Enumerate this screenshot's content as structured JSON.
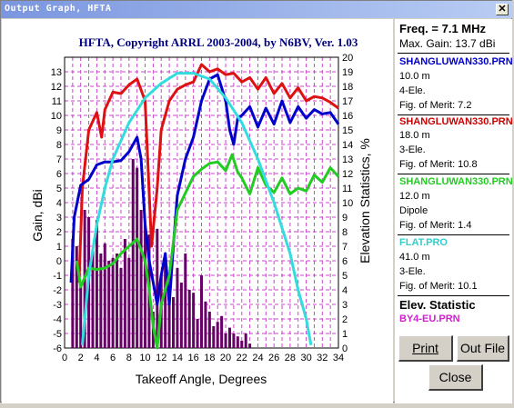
{
  "window": {
    "title": "Output Graph, HFTA"
  },
  "chart_data": {
    "type": "line",
    "title": "HFTA, Copyright ARRL 2003-2004, by N6BV, Ver. 1.03",
    "xlabel": "Takeoff Angle, Degrees",
    "ylabel": "Gain, dBi",
    "y2label": "Elevation Statistics, %",
    "xlim": [
      0,
      34
    ],
    "ylim": [
      -6,
      14
    ],
    "y2lim": [
      0,
      20
    ],
    "x_ticks": [
      "0",
      "2",
      "4",
      "6",
      "8",
      "10",
      "12",
      "14",
      "16",
      "18",
      "20",
      "22",
      "24",
      "26",
      "28",
      "30",
      "32",
      "34"
    ],
    "y_ticks": [
      "-6",
      "-5",
      "-4",
      "-3",
      "-2",
      "-1",
      "0",
      "1",
      "2",
      "3",
      "4",
      "5",
      "6",
      "7",
      "8",
      "9",
      "10",
      "11",
      "12",
      "13"
    ],
    "y2_ticks": [
      "0",
      "1",
      "2",
      "3",
      "4",
      "5",
      "6",
      "7",
      "8",
      "9",
      "10",
      "11",
      "12",
      "13",
      "14",
      "15",
      "16",
      "17",
      "18",
      "19",
      "20"
    ],
    "grid": true,
    "series": [
      {
        "name": "SHANGLUWAN330.PRN",
        "color": "#dd1111",
        "points": [
          [
            1.8,
            -1.5
          ],
          [
            2.2,
            5
          ],
          [
            3,
            9
          ],
          [
            4,
            10.2
          ],
          [
            4.6,
            8.5
          ],
          [
            5,
            10.4
          ],
          [
            6,
            11.6
          ],
          [
            7,
            11.5
          ],
          [
            8,
            12.1
          ],
          [
            9,
            12.5
          ],
          [
            10,
            11
          ],
          [
            10.8,
            1
          ],
          [
            11.5,
            5
          ],
          [
            12,
            9
          ],
          [
            13,
            11
          ],
          [
            14,
            11.8
          ],
          [
            15,
            12.1
          ],
          [
            16,
            12.3
          ],
          [
            17,
            13.5
          ],
          [
            18,
            13
          ],
          [
            19,
            13.2
          ],
          [
            20,
            12.8
          ],
          [
            21,
            12.9
          ],
          [
            22,
            12.3
          ],
          [
            23,
            12.6
          ],
          [
            24,
            11.8
          ],
          [
            25,
            12.6
          ],
          [
            26,
            11.5
          ],
          [
            27,
            12.2
          ],
          [
            28,
            11.2
          ],
          [
            29,
            11.9
          ],
          [
            30,
            11
          ],
          [
            31,
            11.3
          ],
          [
            32,
            11.2
          ],
          [
            33,
            10.9
          ],
          [
            34,
            10.5
          ]
        ]
      },
      {
        "name": "SHANGLUWAN330.PRN",
        "color": "#0000cc",
        "points": [
          [
            0.8,
            -1.5
          ],
          [
            1.2,
            3
          ],
          [
            2,
            5.2
          ],
          [
            3,
            5.6
          ],
          [
            4,
            6.6
          ],
          [
            5,
            6.8
          ],
          [
            6,
            6.8
          ],
          [
            7,
            6.9
          ],
          [
            8,
            7.5
          ],
          [
            9,
            8.5
          ],
          [
            9.5,
            7
          ],
          [
            10,
            2.5
          ],
          [
            10.5,
            0
          ],
          [
            11,
            -1.5
          ],
          [
            11.5,
            -3
          ],
          [
            12,
            -1
          ],
          [
            12.5,
            0.5
          ],
          [
            13,
            -3
          ],
          [
            13.5,
            1
          ],
          [
            14,
            4.5
          ],
          [
            15,
            7
          ],
          [
            16,
            8.5
          ],
          [
            17,
            11
          ],
          [
            18,
            12.5
          ],
          [
            19,
            12.8
          ],
          [
            20,
            11
          ],
          [
            20.5,
            9
          ],
          [
            21,
            8
          ],
          [
            21.5,
            9.8
          ],
          [
            22,
            10
          ],
          [
            23,
            10.6
          ],
          [
            24,
            9.2
          ],
          [
            25,
            10.5
          ],
          [
            26,
            9.4
          ],
          [
            27,
            11
          ],
          [
            28,
            9.5
          ],
          [
            29,
            10.6
          ],
          [
            30,
            9.8
          ],
          [
            31,
            10.4
          ],
          [
            32,
            10.1
          ],
          [
            33,
            10.2
          ],
          [
            34,
            9.4
          ]
        ]
      },
      {
        "name": "SHANGLUWAN330.PRN",
        "color": "#22cc22",
        "points": [
          [
            1.5,
            0
          ],
          [
            2,
            -1.8
          ],
          [
            3,
            -0.5
          ],
          [
            4,
            -0.6
          ],
          [
            5,
            -0.5
          ],
          [
            6,
            -0.2
          ],
          [
            7,
            0.5
          ],
          [
            8,
            1
          ],
          [
            9,
            1.5
          ],
          [
            10,
            0
          ],
          [
            10.5,
            -2
          ],
          [
            11,
            -4.5
          ],
          [
            11.5,
            -6
          ],
          [
            12,
            -3
          ],
          [
            13,
            -1
          ],
          [
            14,
            3.5
          ],
          [
            16,
            5.8
          ],
          [
            17,
            6.3
          ],
          [
            18,
            6.7
          ],
          [
            19,
            6.8
          ],
          [
            20,
            6.2
          ],
          [
            20.8,
            7.3
          ],
          [
            21.5,
            6.1
          ],
          [
            22,
            5.7
          ],
          [
            23,
            4.6
          ],
          [
            24,
            6.4
          ],
          [
            25,
            5.2
          ],
          [
            26,
            4.7
          ],
          [
            27,
            5.7
          ],
          [
            28,
            4.6
          ],
          [
            29,
            5
          ],
          [
            30,
            4.8
          ],
          [
            31,
            5.9
          ],
          [
            32,
            5.4
          ],
          [
            33,
            6.4
          ],
          [
            34,
            5.8
          ]
        ]
      },
      {
        "name": "FLAT.PRO",
        "color": "#33dddd",
        "points": [
          [
            2.2,
            -5.8
          ],
          [
            3,
            -1
          ],
          [
            4,
            2.5
          ],
          [
            5,
            5
          ],
          [
            6,
            7
          ],
          [
            8,
            9.5
          ],
          [
            10,
            11.2
          ],
          [
            12,
            12.2
          ],
          [
            14,
            12.9
          ],
          [
            16,
            12.9
          ],
          [
            18,
            12.5
          ],
          [
            20,
            11.2
          ],
          [
            22,
            9.5
          ],
          [
            24,
            7
          ],
          [
            26,
            4
          ],
          [
            28,
            0.5
          ],
          [
            29,
            -2
          ],
          [
            30,
            -4
          ],
          [
            30.6,
            -5.8
          ]
        ]
      },
      {
        "name": "BY4-EU.PRN",
        "color": "#660066",
        "type": "bar",
        "x": [
          1,
          1.5,
          2,
          2.5,
          3,
          3.5,
          4,
          4.5,
          5,
          5.5,
          6,
          6.5,
          7,
          7.5,
          8,
          8.5,
          9,
          9.5,
          10,
          10.5,
          11,
          11.5,
          12,
          12.5,
          13,
          13.5,
          14,
          14.5,
          15,
          15.5,
          16,
          16.5,
          17,
          17.5,
          18,
          18.5,
          19,
          19.5,
          20,
          20.5,
          21,
          21.5,
          22,
          22.5,
          23
        ],
        "values": [
          7.5,
          7,
          4.2,
          9.5,
          9,
          6.8,
          8.8,
          6.5,
          7.2,
          6,
          6.2,
          6.5,
          5.5,
          7.5,
          6.2,
          13,
          12.4,
          9.5,
          8.5,
          7.8,
          2.5,
          8.2,
          5,
          6,
          4.2,
          3.5,
          5.5,
          4.5,
          6.5,
          4,
          3.8,
          2,
          5,
          3.2,
          2.5,
          1.5,
          1.8,
          2.2,
          1,
          1.4,
          1,
          0.8,
          0.5,
          1,
          0.3
        ]
      }
    ]
  },
  "panel": {
    "freq": "Freq. = 7.1 MHz",
    "max_gain": "Max. Gain: 13.7 dBi",
    "entries": [
      {
        "name": "SHANGLUWAN330.PRN",
        "color": "#0000cc",
        "height": "10.0 m",
        "type": "4-Ele.",
        "fom": "Fig. of Merit: 7.2"
      },
      {
        "name": "SHANGLUWAN330.PRN",
        "color": "#cc0000",
        "height": "18.0 m",
        "type": "3-Ele.",
        "fom": "Fig. of Merit: 10.8"
      },
      {
        "name": "SHANGLUWAN330.PRN",
        "color": "#22cc22",
        "height": "12.0 m",
        "type": "Dipole",
        "fom": "Fig. of Merit: 1.4"
      },
      {
        "name": "FLAT.PRO",
        "color": "#33cccc",
        "height": "41.0 m",
        "type": "3-Ele.",
        "fom": "Fig. of Merit: 10.1"
      }
    ],
    "elev_title": "Elev. Statistic",
    "elev_file": "BY4-EU.PRN",
    "elev_color": "#cc22cc"
  },
  "buttons": {
    "print": "Print",
    "outfile": "Out File",
    "close": "Close"
  }
}
